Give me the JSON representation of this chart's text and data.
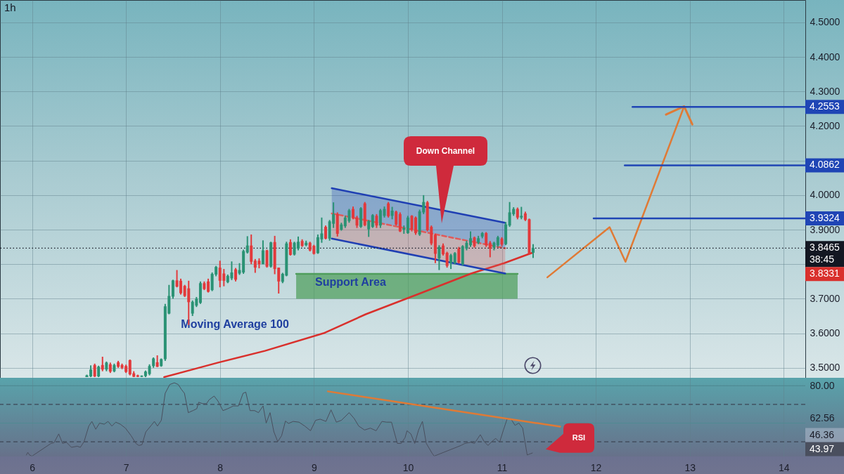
{
  "chart_data": [
    {
      "type": "candlestick",
      "title": "1h",
      "x": [
        6.583,
        6.625,
        6.667,
        6.708,
        6.75,
        6.792,
        6.833,
        6.875,
        6.917,
        6.958,
        7,
        7.042,
        7.083,
        7.125,
        7.167,
        7.208,
        7.25,
        7.292,
        7.333,
        7.375,
        7.417,
        7.458,
        7.5,
        7.542,
        7.583,
        7.625,
        7.667,
        7.708,
        7.75,
        7.792,
        7.833,
        7.875,
        7.917,
        7.958,
        8,
        8.042,
        8.083,
        8.125,
        8.167,
        8.208,
        8.25,
        8.292,
        8.333,
        8.375,
        8.417,
        8.458,
        8.5,
        8.542,
        8.583,
        8.625,
        8.667,
        8.708,
        8.75,
        8.792,
        8.833,
        8.875,
        8.917,
        8.958,
        9,
        9.042,
        9.083,
        9.125,
        9.167,
        9.208,
        9.25,
        9.292,
        9.333,
        9.375,
        9.417,
        9.458,
        9.5,
        9.542,
        9.583,
        9.625,
        9.667,
        9.708,
        9.75,
        9.792,
        9.833,
        9.875,
        9.917,
        9.958,
        10,
        10.042,
        10.083,
        10.125,
        10.167,
        10.208,
        10.25,
        10.292,
        10.333,
        10.375,
        10.417,
        10.458,
        10.5,
        10.542,
        10.583,
        10.625,
        10.667,
        10.708,
        10.75,
        10.792,
        10.833,
        10.875,
        10.917,
        10.958,
        11,
        11.042,
        11.083,
        11.125,
        11.167,
        11.208,
        11.25,
        11.292,
        11.333
      ],
      "ohlc": [
        [
          3.473,
          3.48,
          3.473,
          3.478
        ],
        [
          3.475,
          3.507,
          3.473,
          3.495
        ],
        [
          3.508,
          3.512,
          3.473,
          3.475
        ],
        [
          3.475,
          3.506,
          3.473,
          3.503
        ],
        [
          3.508,
          3.532,
          3.49,
          3.495
        ],
        [
          3.495,
          3.518,
          3.49,
          3.515
        ],
        [
          3.51,
          3.515,
          3.485,
          3.489
        ],
        [
          3.49,
          3.512,
          3.487,
          3.508
        ],
        [
          3.516,
          3.52,
          3.5,
          3.503
        ],
        [
          3.508,
          3.512,
          3.496,
          3.5
        ],
        [
          3.505,
          3.509,
          3.485,
          3.488
        ],
        [
          3.522,
          3.524,
          3.478,
          3.481
        ],
        [
          3.484,
          3.49,
          3.473,
          3.474
        ],
        [
          3.478,
          3.48,
          3.473,
          3.474
        ],
        [
          3.474,
          3.478,
          3.473,
          3.477
        ],
        [
          3.476,
          3.492,
          3.473,
          3.489
        ],
        [
          3.482,
          3.51,
          3.478,
          3.505
        ],
        [
          3.505,
          3.53,
          3.5,
          3.527
        ],
        [
          3.516,
          3.536,
          3.502,
          3.503
        ],
        [
          3.505,
          3.527,
          3.503,
          3.525
        ],
        [
          3.525,
          3.685,
          3.52,
          3.678
        ],
        [
          3.657,
          3.74,
          3.655,
          3.708
        ],
        [
          3.706,
          3.755,
          3.7,
          3.753
        ],
        [
          3.753,
          3.783,
          3.733,
          3.735
        ],
        [
          3.752,
          3.758,
          3.712,
          3.716
        ],
        [
          3.737,
          3.74,
          3.705,
          3.708
        ],
        [
          3.73,
          3.752,
          3.624,
          3.69
        ],
        [
          3.657,
          3.695,
          3.65,
          3.691
        ],
        [
          3.68,
          3.705,
          3.676,
          3.7
        ],
        [
          3.688,
          3.75,
          3.685,
          3.745
        ],
        [
          3.745,
          3.75,
          3.725,
          3.728
        ],
        [
          3.75,
          3.758,
          3.718,
          3.72
        ],
        [
          3.725,
          3.776,
          3.722,
          3.772
        ],
        [
          3.77,
          3.795,
          3.765,
          3.792
        ],
        [
          3.79,
          3.81,
          3.733,
          3.752
        ],
        [
          3.773,
          3.786,
          3.736,
          3.752
        ],
        [
          3.748,
          3.77,
          3.745,
          3.766
        ],
        [
          3.759,
          3.808,
          3.754,
          3.776
        ],
        [
          3.785,
          3.789,
          3.75,
          3.755
        ],
        [
          3.773,
          3.803,
          3.769,
          3.783
        ],
        [
          3.776,
          3.842,
          3.772,
          3.838
        ],
        [
          3.834,
          3.881,
          3.831,
          3.854
        ],
        [
          3.854,
          3.886,
          3.8,
          3.807
        ],
        [
          3.81,
          3.815,
          3.775,
          3.79
        ],
        [
          3.81,
          3.817,
          3.788,
          3.8
        ],
        [
          3.8,
          3.869,
          3.8,
          3.84
        ],
        [
          3.84,
          3.842,
          3.79,
          3.793
        ],
        [
          3.793,
          3.865,
          3.79,
          3.863
        ],
        [
          3.864,
          3.882,
          3.771,
          3.786
        ],
        [
          3.79,
          3.79,
          3.715,
          3.75
        ],
        [
          3.749,
          3.775,
          3.745,
          3.772
        ],
        [
          3.767,
          3.865,
          3.765,
          3.86
        ],
        [
          3.864,
          3.872,
          3.825,
          3.827
        ],
        [
          3.828,
          3.865,
          3.825,
          3.862
        ],
        [
          3.845,
          3.88,
          3.84,
          3.865
        ],
        [
          3.867,
          3.872,
          3.85,
          3.853
        ],
        [
          3.855,
          3.868,
          3.852,
          3.862
        ],
        [
          3.862,
          3.865,
          3.837,
          3.84
        ],
        [
          3.853,
          3.856,
          3.828,
          3.83
        ],
        [
          3.832,
          3.886,
          3.83,
          3.878
        ],
        [
          3.872,
          3.935,
          3.862,
          3.889
        ],
        [
          3.908,
          3.912,
          3.872,
          3.874
        ],
        [
          3.874,
          3.928,
          3.868,
          3.924
        ],
        [
          3.917,
          3.979,
          3.905,
          3.945
        ],
        [
          3.945,
          3.95,
          3.88,
          3.888
        ],
        [
          3.9,
          3.92,
          3.897,
          3.915
        ],
        [
          3.91,
          3.94,
          3.905,
          3.935
        ],
        [
          3.925,
          3.96,
          3.92,
          3.956
        ],
        [
          3.96,
          3.967,
          3.93,
          3.935
        ],
        [
          3.935,
          3.94,
          3.905,
          3.912
        ],
        [
          3.908,
          3.965,
          3.905,
          3.962
        ],
        [
          3.976,
          3.98,
          3.91,
          3.913
        ],
        [
          3.901,
          3.928,
          3.879,
          3.925
        ],
        [
          3.908,
          3.945,
          3.905,
          3.942
        ],
        [
          3.94,
          3.945,
          3.905,
          3.912
        ],
        [
          3.912,
          3.96,
          3.905,
          3.956
        ],
        [
          3.94,
          3.967,
          3.935,
          3.96
        ],
        [
          3.976,
          3.98,
          3.935,
          3.939
        ],
        [
          3.94,
          3.966,
          3.93,
          3.955
        ],
        [
          3.952,
          3.955,
          3.912,
          3.915
        ],
        [
          3.945,
          3.95,
          3.893,
          3.895
        ],
        [
          3.9,
          3.912,
          3.888,
          3.905
        ],
        [
          3.89,
          3.94,
          3.888,
          3.935
        ],
        [
          3.94,
          3.942,
          3.895,
          3.9
        ],
        [
          3.935,
          3.938,
          3.885,
          3.89
        ],
        [
          3.886,
          3.958,
          3.882,
          3.953
        ],
        [
          3.95,
          4.0,
          3.945,
          3.98
        ],
        [
          3.979,
          3.983,
          3.895,
          3.898
        ],
        [
          3.908,
          3.912,
          3.855,
          3.86
        ],
        [
          3.885,
          3.888,
          3.803,
          3.83
        ],
        [
          3.817,
          3.855,
          3.783,
          3.85
        ],
        [
          3.854,
          3.86,
          3.825,
          3.829
        ],
        [
          3.833,
          3.836,
          3.79,
          3.795
        ],
        [
          3.804,
          3.83,
          3.786,
          3.826
        ],
        [
          3.803,
          3.835,
          3.8,
          3.832
        ],
        [
          3.845,
          3.85,
          3.802,
          3.805
        ],
        [
          3.8,
          3.855,
          3.796,
          3.852
        ],
        [
          3.845,
          3.868,
          3.84,
          3.862
        ],
        [
          3.855,
          3.895,
          3.85,
          3.875
        ],
        [
          3.877,
          3.88,
          3.848,
          3.852
        ],
        [
          3.862,
          3.882,
          3.858,
          3.875
        ],
        [
          3.88,
          3.893,
          3.875,
          3.89
        ],
        [
          3.89,
          3.893,
          3.85,
          3.855
        ],
        [
          3.862,
          3.867,
          3.82,
          3.845
        ],
        [
          3.848,
          3.865,
          3.84,
          3.862
        ],
        [
          3.855,
          3.882,
          3.85,
          3.878
        ],
        [
          3.874,
          3.878,
          3.852,
          3.857
        ],
        [
          3.858,
          3.922,
          3.855,
          3.915
        ],
        [
          3.912,
          3.98,
          3.908,
          3.95
        ],
        [
          3.945,
          3.965,
          3.94,
          3.96
        ],
        [
          3.96,
          3.964,
          3.93,
          3.935
        ],
        [
          3.935,
          3.966,
          3.93,
          3.94
        ],
        [
          3.947,
          3.952,
          3.925,
          3.928
        ],
        [
          3.93,
          3.932,
          3.828,
          3.83
        ],
        [
          3.833,
          3.858,
          3.818,
          3.8465
        ]
      ],
      "colors": [
        "#2a9274",
        "#2a9274",
        "#e2393b",
        "#2a9274",
        "#e2393b",
        "#2a9274",
        "#e2393b",
        "#2a9274",
        "#e2393b",
        "#e2393b",
        "#e2393b",
        "#e2393b",
        "#e2393b",
        "#e2393b",
        "#2a9274",
        "#2a9274",
        "#2a9274",
        "#2a9274",
        "#e2393b",
        "#2a9274",
        "#2a9274",
        "#2a9274",
        "#2a9274",
        "#e2393b",
        "#e2393b",
        "#e2393b",
        "#e2393b",
        "#2a9274",
        "#2a9274",
        "#2a9274",
        "#e2393b",
        "#e2393b",
        "#2a9274",
        "#2a9274",
        "#e2393b",
        "#e2393b",
        "#2a9274",
        "#2a9274",
        "#e2393b",
        "#2a9274",
        "#2a9274",
        "#2a9274",
        "#e2393b",
        "#e2393b",
        "#e2393b",
        "#2a9274",
        "#e2393b",
        "#2a9274",
        "#e2393b",
        "#e2393b",
        "#2a9274",
        "#2a9274",
        "#e2393b",
        "#2a9274",
        "#2a9274",
        "#e2393b",
        "#2a9274",
        "#e2393b",
        "#e2393b",
        "#2a9274",
        "#2a9274",
        "#e2393b",
        "#2a9274",
        "#2a9274",
        "#e2393b",
        "#2a9274",
        "#2a9274",
        "#2a9274",
        "#e2393b",
        "#e2393b",
        "#2a9274",
        "#e2393b",
        "#2a9274",
        "#2a9274",
        "#e2393b",
        "#2a9274",
        "#2a9274",
        "#e2393b",
        "#2a9274",
        "#e2393b",
        "#e2393b",
        "#2a9274",
        "#2a9274",
        "#e2393b",
        "#e2393b",
        "#2a9274",
        "#2a9274",
        "#e2393b",
        "#e2393b",
        "#e2393b",
        "#2a9274",
        "#e2393b",
        "#e2393b",
        "#2a9274",
        "#2a9274",
        "#e2393b",
        "#2a9274",
        "#2a9274",
        "#2a9274",
        "#e2393b",
        "#2a9274",
        "#2a9274",
        "#e2393b",
        "#e2393b",
        "#2a9274",
        "#2a9274",
        "#e2393b",
        "#2a9274",
        "#2a9274",
        "#2a9274",
        "#e2393b",
        "#2a9274",
        "#e2393b",
        "#e2393b",
        "#2a9274"
      ],
      "xlim": [
        5.659,
        14.23
      ],
      "xticks": [
        6,
        7,
        8,
        9,
        10,
        11,
        12,
        13,
        14
      ],
      "ylim": [
        3.471,
        4.565
      ],
      "yticks": [
        {
          "value": 3.5,
          "label": "3.5000"
        },
        {
          "value": 3.6,
          "label": "3.6000"
        },
        {
          "value": 3.7,
          "label": "3.7000"
        },
        {
          "value": 3.8,
          "label": null
        },
        {
          "value": 3.9,
          "label": "3.9000"
        },
        {
          "value": 4.0,
          "label": "4.0000"
        },
        {
          "value": 4.1,
          "label": null
        },
        {
          "value": 4.2,
          "label": "4.2000"
        },
        {
          "value": 4.3,
          "label": "4.3000"
        },
        {
          "value": 4.4,
          "label": "4.4000"
        },
        {
          "value": 4.5,
          "label": "4.5000"
        }
      ],
      "tick_labels": "y",
      "grid": true,
      "series": [
        {
          "type": "line",
          "name": "Support Area",
          "color": "#4f9e5c",
          "x": [
            8.811,
            11.168
          ],
          "values": [
            3.772,
            3.772
          ],
          "lower": [
            3.7,
            3.7
          ],
          "upper": [
            3.772,
            3.772
          ]
        },
        {
          "type": "line",
          "color": "#d9302c",
          "x": [
            7.406,
            7.98,
            8.479,
            9.103,
            9.552,
            10.126,
            10.674,
            11.024,
            11.323
          ],
          "values": [
            3.473,
            3.515,
            3.549,
            3.6,
            3.655,
            3.715,
            3.773,
            3.803,
            3.833
          ]
        },
        {
          "type": "line",
          "color": "#1f3fb3",
          "x": [
            9.19,
            11.036
          ],
          "values": [
            4.02,
            3.92
          ],
          "lower": [
            3.947,
            3.846
          ],
          "upper": [
            4.02,
            3.92
          ]
        },
        {
          "type": "line",
          "color": "#e05a5a",
          "line_style": "dashed",
          "x": [
            9.19,
            11.036
          ],
          "values": [
            3.947,
            3.846
          ],
          "lower": [
            3.874,
            3.773
          ],
          "upper": [
            3.947,
            3.846
          ]
        },
        {
          "type": "line",
          "color": "#1f3fb3",
          "x": [
            9.19,
            11.036
          ],
          "values": [
            3.874,
            3.773
          ]
        },
        {
          "type": "line",
          "color": "#e07a35",
          "x": [
            11.485,
            12.147,
            12.316,
            12.94
          ],
          "values": [
            3.762,
            3.907,
            3.807,
            4.257
          ]
        },
        {
          "type": "line",
          "color": "#1f45b5",
          "x": [
            12.391,
            14.23
          ],
          "values": [
            4.2553,
            4.2553
          ],
          "value_labels": [
            null,
            "4.2553"
          ]
        },
        {
          "type": "line",
          "color": "#1f45b5",
          "x": [
            12.308,
            14.23
          ],
          "values": [
            4.0862,
            4.0862
          ],
          "value_labels": [
            null,
            "4.0862"
          ]
        },
        {
          "type": "line",
          "color": "#1f45b5",
          "x": [
            11.977,
            14.23
          ],
          "values": [
            3.9324,
            3.9324
          ],
          "value_labels": [
            null,
            "3.9324"
          ]
        }
      ],
      "ref_lines": [
        {
          "axis": "y",
          "value": 3.8465,
          "label": "3.8465",
          "line_style": "dotted",
          "color": "#131722"
        }
      ],
      "annotations": [
        "Down Channel",
        "38:45",
        {
          "text": "Moving Average 100",
          "x": 8.16,
          "y": 3.527
        },
        "3.8331"
      ]
    },
    {
      "type": "line",
      "series": [
        {
          "color": "#4a4f5e",
          "x": [
            5.94,
            5.955,
            5.975,
            6.0,
            6.202,
            6.234,
            6.284,
            6.325,
            6.366,
            6.419,
            6.481,
            6.514,
            6.554,
            6.604,
            6.637,
            6.678,
            6.719,
            6.768,
            6.809,
            6.85,
            6.891,
            6.94,
            6.994,
            7.055,
            7.105,
            7.137,
            7.17,
            7.211,
            7.269,
            7.302,
            7.335,
            7.376,
            7.417,
            7.466,
            7.515,
            7.556,
            7.589,
            7.622,
            7.663,
            7.712,
            7.753,
            7.774,
            7.815,
            7.856,
            7.885,
            7.938,
            7.979,
            8.032,
            8.082,
            8.143,
            8.197,
            8.246,
            8.275,
            8.32,
            8.369,
            8.41,
            8.459,
            8.492,
            8.533,
            8.574,
            8.615,
            8.656,
            8.697,
            8.73,
            8.779,
            8.841,
            8.903,
            8.964,
            9.018,
            9.067,
            9.128,
            9.182,
            9.239,
            9.293,
            9.375,
            9.428,
            9.477,
            9.539,
            9.601,
            9.662,
            9.724,
            9.773,
            9.826,
            9.888,
            9.929,
            9.97,
            9.991,
            10.032,
            10.073,
            10.114,
            10.155,
            10.196,
            10.257,
            10.28,
            10.565,
            10.607,
            10.669,
            10.709,
            10.771,
            10.812,
            10.853,
            10.894,
            10.935,
            10.976,
            11.017,
            11.058,
            11.099,
            11.14,
            11.181,
            11.222,
            11.27,
            11.325
          ],
          "values": [
            42.9,
            44.3,
            42.8,
            null,
            49.1,
            49.5,
            54.2,
            49.1,
            49.7,
            47.0,
            47.6,
            47.0,
            50.1,
            58.4,
            60.9,
            56.7,
            60.0,
            59.4,
            60.9,
            58.4,
            60.5,
            59.4,
            57.3,
            53.2,
            49.1,
            48.0,
            48.4,
            55.3,
            58.8,
            60.9,
            58.4,
            61.5,
            76.0,
            80.7,
            81.6,
            80.7,
            78.1,
            76.0,
            65.6,
            66.7,
            67.7,
            71.2,
            70.4,
            70.4,
            72.5,
            74.5,
            71.8,
            66.7,
            67.7,
            69.2,
            69.2,
            76.0,
            76.6,
            66.7,
            66.7,
            65.6,
            69.2,
            60.0,
            65.6,
            55.3,
            50.1,
            53.2,
            61.1,
            59.8,
            60.9,
            60.5,
            58.4,
            55.9,
            61.5,
            62.1,
            60.9,
            67.1,
            60.5,
            61.5,
            65.6,
            62.5,
            58.4,
            56.3,
            57.3,
            55.9,
            60.9,
            60.5,
            60.5,
            49.1,
            49.1,
            52.2,
            55.9,
            54.2,
            49.1,
            56.3,
            60.9,
            49.1,
            43.9,
            null,
            48.0,
            49.1,
            49.7,
            49.1,
            53.8,
            50.1,
            48.0,
            50.1,
            51.8,
            49.7,
            56.3,
            62.5,
            62.1,
            58.8,
            60.0,
            57.3,
            42.9,
            43.97
          ]
        },
        {
          "color": "#e07a35",
          "x": [
            9.149,
            11.62
          ],
          "values": [
            77.0,
            58.1
          ]
        }
      ],
      "xlim": [
        5.659,
        14.23
      ],
      "xticks": [
        6,
        7,
        8,
        9,
        10,
        11,
        12,
        13,
        14
      ],
      "ylim": [
        42.3,
        84.3
      ],
      "yticks": [
        {
          "value": 80,
          "label": "80.00"
        },
        62.56
      ],
      "grid": "x",
      "ref_lines": [
        {
          "axis": "y",
          "value": 80,
          "color": "#4f8a93"
        },
        {
          "axis": "y",
          "value": 60,
          "color": "#4f8a93"
        },
        {
          "axis": "y",
          "value": 70,
          "line_style": "dashed",
          "color": "#3c4654"
        },
        {
          "axis": "y",
          "value": 50,
          "line_style": "dashed",
          "color": "#3c4654"
        }
      ],
      "annotations": [
        "RSI",
        "46.36",
        "43.97"
      ]
    }
  ]
}
